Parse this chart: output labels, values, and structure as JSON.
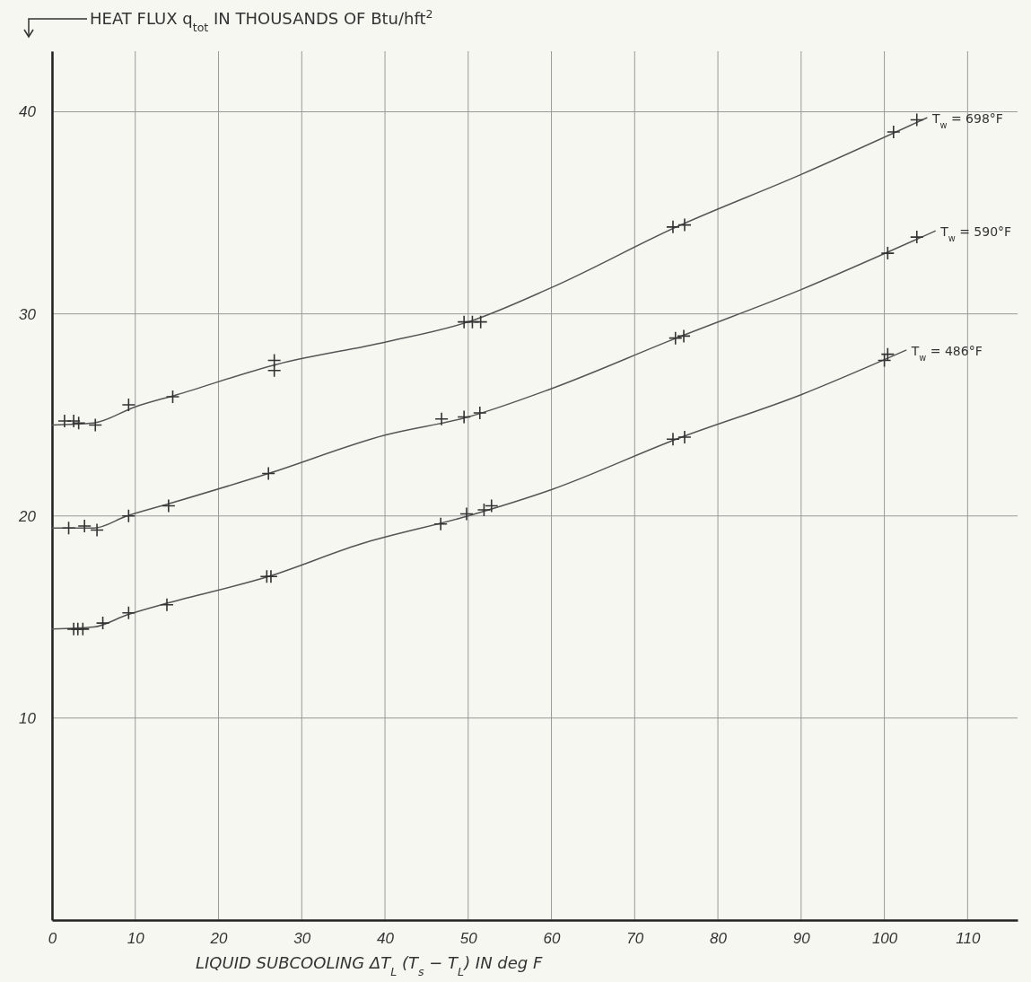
{
  "chart_data": {
    "type": "line",
    "ylabel": "HEAT FLUX q$_{tot}$ IN THOUSANDS OF Btu/hft$^{2}$",
    "xlabel": "LIQUID SUBCOOLING ΔT$_{L}$ (T$_{s}$ − T$_{L}$) IN deg F",
    "xlim": [
      0,
      116
    ],
    "ylim": [
      0,
      43
    ],
    "xticks": [
      0,
      10,
      20,
      30,
      40,
      50,
      60,
      70,
      80,
      90,
      100,
      110
    ],
    "yticks": [
      10,
      20,
      30,
      40
    ],
    "grid": true,
    "series": [
      {
        "name": "T$_{w}$ = 698°F",
        "color": "#555555",
        "marker": "none",
        "x": [
          0,
          5,
          10,
          15,
          27,
          40,
          50,
          60,
          75,
          90,
          105.1
        ],
        "values": [
          24.5,
          24.6,
          25.4,
          26.0,
          27.5,
          28.6,
          29.6,
          31.3,
          34.3,
          36.9,
          39.7
        ]
      },
      {
        "name": "T$_{w}$ = 590°F",
        "color": "#555555",
        "marker": "none",
        "x": [
          0,
          5,
          9,
          14,
          26,
          40,
          50,
          60,
          75,
          90,
          106.1
        ],
        "values": [
          19.4,
          19.4,
          20.0,
          20.6,
          22.1,
          24.0,
          24.9,
          26.3,
          28.8,
          31.2,
          34.1
        ]
      },
      {
        "name": "T$_{w}$ = 486°F",
        "color": "#555555",
        "marker": "none",
        "x": [
          0,
          5,
          9,
          14,
          26,
          37,
          50,
          60,
          75,
          90,
          102.6
        ],
        "values": [
          14.4,
          14.5,
          15.1,
          15.7,
          17.0,
          18.6,
          20.0,
          21.3,
          23.8,
          26.0,
          28.2
        ]
      },
      {
        "type": "scatter",
        "color": "#333333",
        "marker": "cross",
        "x": [
          1.5,
          2.6,
          3.2,
          5.2,
          9.2,
          14.5,
          26.7,
          26.7,
          49.5,
          50.5,
          51.5,
          74.6,
          76.0,
          101.1,
          103.9
        ],
        "values": [
          24.7,
          24.7,
          24.6,
          24.5,
          25.5,
          25.9,
          27.7,
          27.2,
          29.6,
          29.6,
          29.6,
          34.3,
          34.4,
          39.0,
          39.6
        ]
      },
      {
        "type": "scatter",
        "color": "#333333",
        "marker": "cross",
        "x": [
          2.0,
          3.9,
          5.4,
          9.2,
          14.0,
          26.0,
          46.8,
          49.5,
          51.4,
          74.9,
          75.9,
          100.4,
          103.9
        ],
        "values": [
          19.4,
          19.5,
          19.3,
          20.0,
          20.5,
          22.1,
          24.8,
          24.9,
          25.1,
          28.8,
          28.9,
          33.0,
          33.8
        ]
      },
      {
        "type": "scatter",
        "color": "#333333",
        "marker": "cross",
        "x": [
          2.6,
          3.1,
          3.7,
          6.1,
          9.2,
          13.8,
          25.8,
          26.3,
          46.7,
          49.8,
          51.9,
          52.8,
          74.6,
          76.0,
          100.0,
          100.4
        ],
        "values": [
          14.4,
          14.4,
          14.4,
          14.7,
          15.2,
          15.6,
          17.0,
          17.0,
          19.6,
          20.1,
          20.3,
          20.5,
          23.8,
          23.9,
          27.7,
          28.0
        ]
      }
    ]
  }
}
